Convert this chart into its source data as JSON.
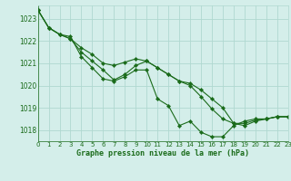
{
  "xlabel": "Graphe pression niveau de la mer (hPa)",
  "bg_color": "#d4eeea",
  "grid_color": "#b0d8d0",
  "line_color": "#1a6b1a",
  "xlim": [
    0,
    23
  ],
  "ylim": [
    1017.5,
    1023.6
  ],
  "yticks": [
    1018,
    1019,
    1020,
    1021,
    1022,
    1023
  ],
  "xticks": [
    0,
    1,
    2,
    3,
    4,
    5,
    6,
    7,
    8,
    9,
    10,
    11,
    12,
    13,
    14,
    15,
    16,
    17,
    18,
    19,
    20,
    21,
    22,
    23
  ],
  "series": [
    [
      1023.4,
      1022.6,
      1022.3,
      1022.2,
      1021.3,
      1020.8,
      1020.3,
      1020.2,
      1020.4,
      1020.7,
      1020.7,
      1019.4,
      1019.1,
      1018.2,
      1018.4,
      1017.9,
      1017.7,
      1017.7,
      1018.2,
      1018.4,
      1018.5,
      1018.5,
      1018.6,
      1018.6
    ],
    [
      1023.4,
      1022.6,
      1022.3,
      1022.1,
      1021.7,
      1021.4,
      1021.0,
      1020.9,
      1021.05,
      1021.2,
      1021.1,
      1020.8,
      1020.5,
      1020.2,
      1020.0,
      1019.5,
      1018.95,
      1018.5,
      1018.3,
      1018.2,
      1018.4,
      1018.5,
      1018.6,
      1018.6
    ],
    [
      1023.4,
      1022.6,
      1022.3,
      1022.1,
      1021.5,
      1021.1,
      1020.7,
      1020.25,
      1020.5,
      1020.9,
      1021.1,
      1020.8,
      1020.5,
      1020.2,
      1020.1,
      1019.8,
      1019.4,
      1019.0,
      1018.3,
      1018.3,
      1018.45,
      1018.5,
      1018.6,
      1018.6
    ]
  ]
}
